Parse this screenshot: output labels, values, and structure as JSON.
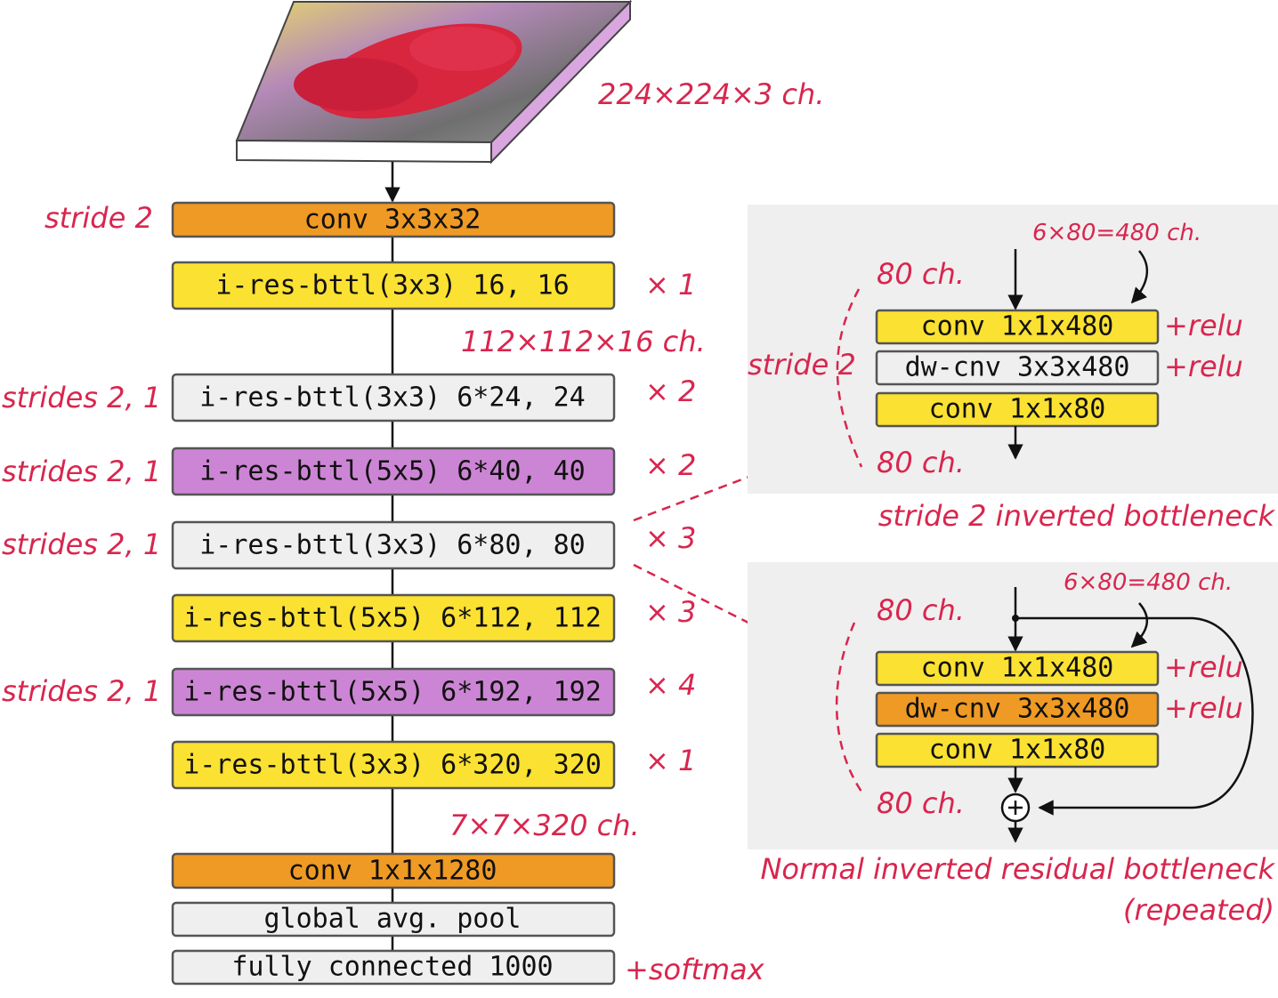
{
  "main": {
    "input_label": "224×224×3 ch.",
    "layers": [
      {
        "label": "conv 3x3x32",
        "note": "stride 2"
      },
      {
        "label": "i-res-bttl(3x3) 16, 16",
        "repeat": "× 1"
      },
      {
        "label": "i-res-bttl(3x3) 6*24, 24",
        "note": "strides 2, 1",
        "repeat": "× 2"
      },
      {
        "label": "i-res-bttl(5x5) 6*40, 40",
        "note": "strides 2, 1",
        "repeat": "× 2"
      },
      {
        "label": "i-res-bttl(3x3) 6*80, 80",
        "note": "strides 2, 1",
        "repeat": "× 3"
      },
      {
        "label": "i-res-bttl(5x5) 6*112, 112",
        "repeat": "× 3"
      },
      {
        "label": "i-res-bttl(5x5) 6*192, 192",
        "note": "strides 2, 1",
        "repeat": "× 4"
      },
      {
        "label": "i-res-bttl(3x3) 6*320, 320",
        "repeat": "× 1"
      },
      {
        "label": "conv 1x1x1280"
      },
      {
        "label": "global avg. pool"
      },
      {
        "label": "fully connected 1000",
        "suffix": "+softmax"
      }
    ],
    "shape_labels": [
      "112×112×16 ch.",
      "7×7×320 ch."
    ]
  },
  "stride2_block": {
    "expansion": "6×80=480 ch.",
    "input": "80 ch.",
    "stride": "stride 2",
    "layers": [
      {
        "label": "conv 1x1x480",
        "activation": "+relu"
      },
      {
        "label": "dw-cnv 3x3x480",
        "activation": "+relu"
      },
      {
        "label": "conv 1x1x80"
      }
    ],
    "output": "80 ch.",
    "caption": "stride 2 inverted bottleneck"
  },
  "normal_block": {
    "expansion": "6×80=480 ch.",
    "input": "80 ch.",
    "layers": [
      {
        "label": "conv 1x1x480",
        "activation": "+relu"
      },
      {
        "label": "dw-cnv 3x3x480",
        "activation": "+relu"
      },
      {
        "label": "conv 1x1x80"
      }
    ],
    "output": "80 ch.",
    "caption": [
      "Normal inverted residual bottleneck",
      "(repeated)"
    ]
  }
}
